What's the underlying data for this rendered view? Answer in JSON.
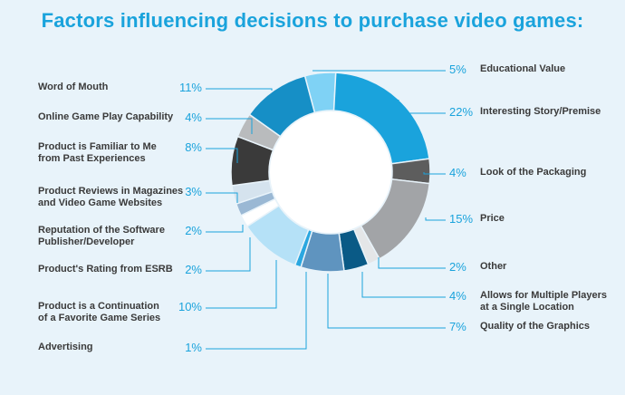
{
  "chart_data": {
    "type": "pie",
    "title": "Factors influencing decisions to purchase video games:",
    "slices": [
      {
        "label": "Educational Value",
        "value": 5,
        "value_label": "5%",
        "color": "#7fd2f5",
        "side": "right"
      },
      {
        "label": "Interesting Story/Premise",
        "value": 22,
        "value_label": "22%",
        "color": "#1aa3dc",
        "side": "right"
      },
      {
        "label": "Look of the Packaging",
        "value": 4,
        "value_label": "4%",
        "color": "#5d5d5d",
        "side": "right"
      },
      {
        "label": "Price",
        "value": 15,
        "value_label": "15%",
        "color": "#a2a4a7",
        "side": "right"
      },
      {
        "label": "Other",
        "value": 2,
        "value_label": "2%",
        "color": "#e4e6e8",
        "side": "right"
      },
      {
        "label": "Allows for Multiple Players\nat a Single Location",
        "value": 4,
        "value_label": "4%",
        "color": "#0a5a86",
        "side": "right"
      },
      {
        "label": "Quality of the Graphics",
        "value": 7,
        "value_label": "7%",
        "color": "#5f94bf",
        "side": "right"
      },
      {
        "label": "Advertising",
        "value": 1,
        "value_label": "1%",
        "color": "#2aa7e0",
        "side": "left"
      },
      {
        "label": "Product is a Continuation\nof a Favorite Game Series",
        "value": 10,
        "value_label": "10%",
        "color": "#b5e1f7",
        "side": "left"
      },
      {
        "label": "Product's Rating from ESRB",
        "value": 2,
        "value_label": "2%",
        "color": "#ffffff",
        "side": "left"
      },
      {
        "label": "Reputation of the Software\nPublisher/Developer",
        "value": 2,
        "value_label": "2%",
        "color": "#9ab8d4",
        "side": "left"
      },
      {
        "label": "Product Reviews in Magazines\nand Video Game Websites",
        "value": 3,
        "value_label": "3%",
        "color": "#d5e3ee",
        "side": "left"
      },
      {
        "label": "Product is Familiar to Me\nfrom Past Experiences",
        "value": 8,
        "value_label": "8%",
        "color": "#3a3a3a",
        "side": "left"
      },
      {
        "label": "Online Game Play Capability",
        "value": 4,
        "value_label": "4%",
        "color": "#b9bbbd",
        "side": "left"
      },
      {
        "label": "Word of Mouth",
        "value": 11,
        "value_label": "11%",
        "color": "#168fc6",
        "side": "left"
      }
    ],
    "label_color": "#3a3a3a",
    "value_color": "#1aa3dc",
    "leader_color": "#1aa3dc"
  }
}
